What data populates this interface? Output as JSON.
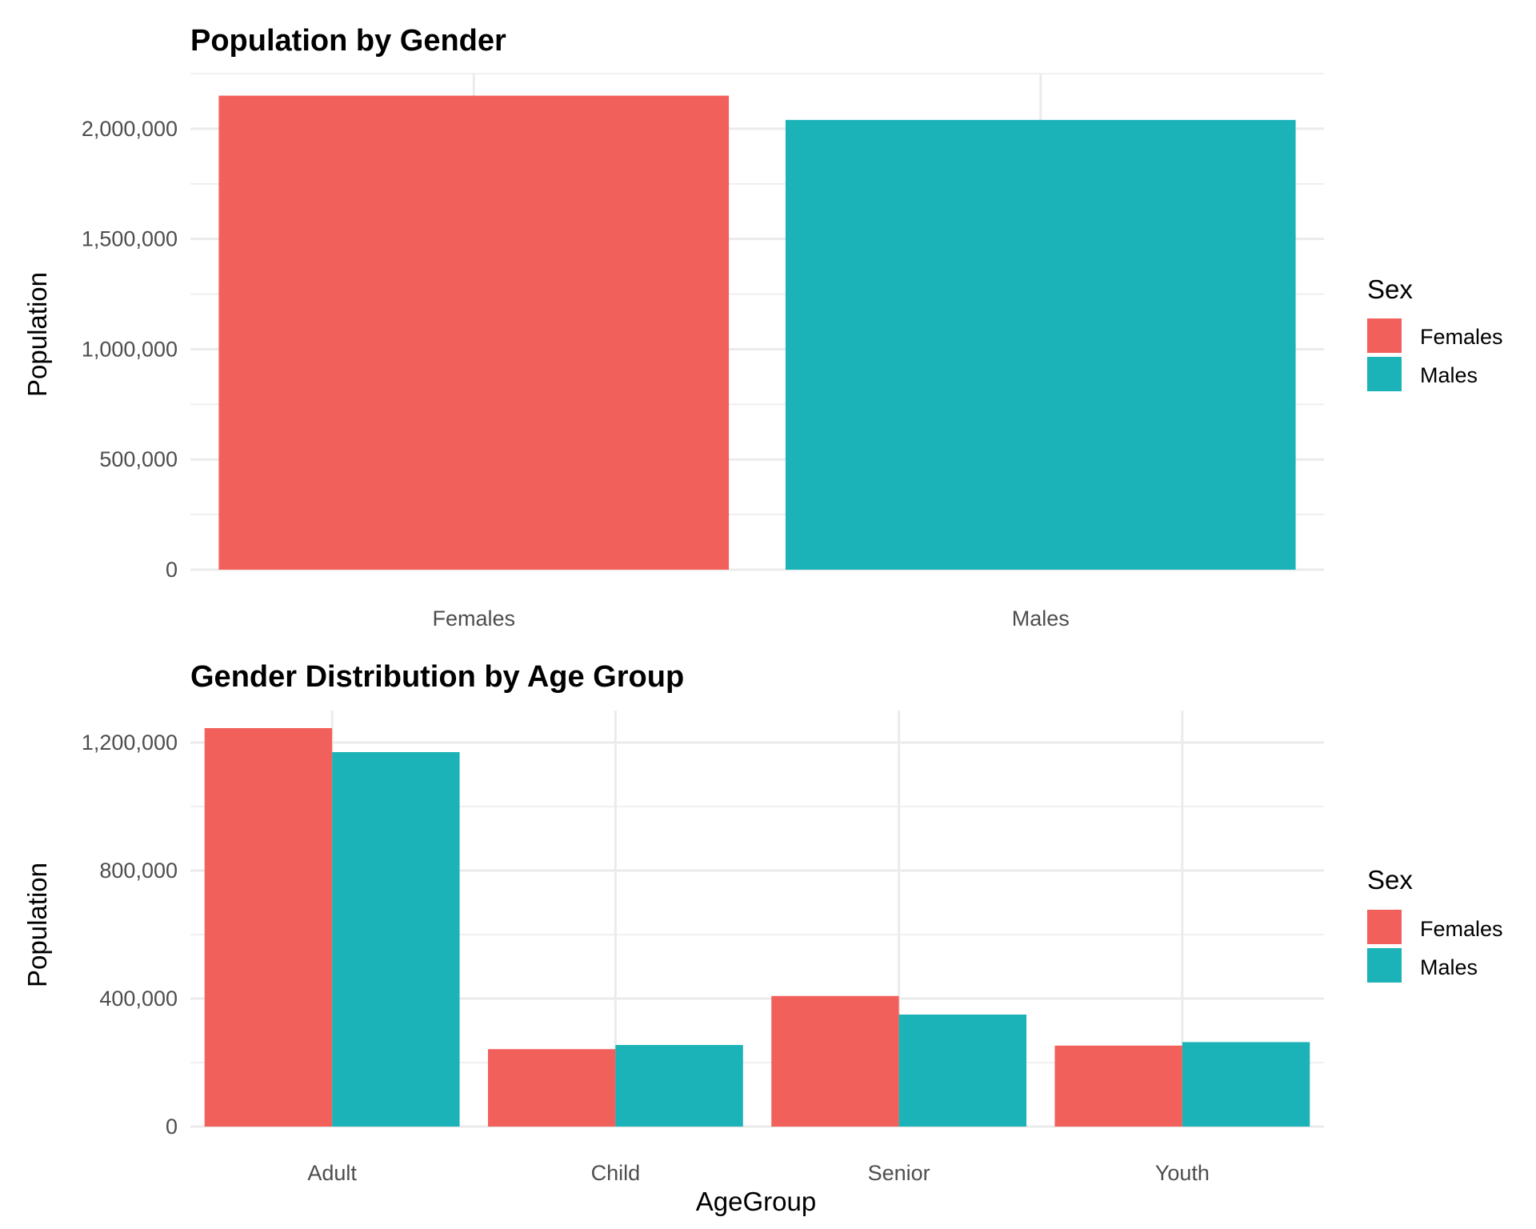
{
  "colors": {
    "Females": "#F2605B",
    "Males": "#1BB3B7",
    "grid": "#EBEBEB"
  },
  "chart_data": [
    {
      "type": "bar",
      "title": "Population by Gender",
      "xlabel": "",
      "ylabel": "Population",
      "categories": [
        "Females",
        "Males"
      ],
      "series": [
        {
          "name": "Females",
          "values": [
            2150000,
            null
          ]
        },
        {
          "name": "Males",
          "values": [
            null,
            2040000
          ]
        }
      ],
      "ylim": [
        0,
        2250000
      ],
      "yticks": [
        0,
        500000,
        1000000,
        1500000,
        2000000
      ],
      "ytick_labels": [
        "0",
        "500,000",
        "1,000,000",
        "1,500,000",
        "2,000,000"
      ],
      "grid": true,
      "legend": {
        "title": "Sex",
        "entries": [
          "Females",
          "Males"
        ],
        "position": "right"
      }
    },
    {
      "type": "bar",
      "title": "Gender Distribution by Age Group",
      "xlabel": "AgeGroup",
      "ylabel": "Population",
      "categories": [
        "Adult",
        "Child",
        "Senior",
        "Youth"
      ],
      "series": [
        {
          "name": "Females",
          "values": [
            1245000,
            242000,
            408000,
            253000
          ]
        },
        {
          "name": "Males",
          "values": [
            1170000,
            255000,
            350000,
            264000
          ]
        }
      ],
      "ylim": [
        0,
        1300000
      ],
      "yticks": [
        0,
        400000,
        800000,
        1200000
      ],
      "ytick_labels": [
        "0",
        "400,000",
        "800,000",
        "1,200,000"
      ],
      "grid": true,
      "legend": {
        "title": "Sex",
        "entries": [
          "Females",
          "Males"
        ],
        "position": "right"
      }
    }
  ]
}
